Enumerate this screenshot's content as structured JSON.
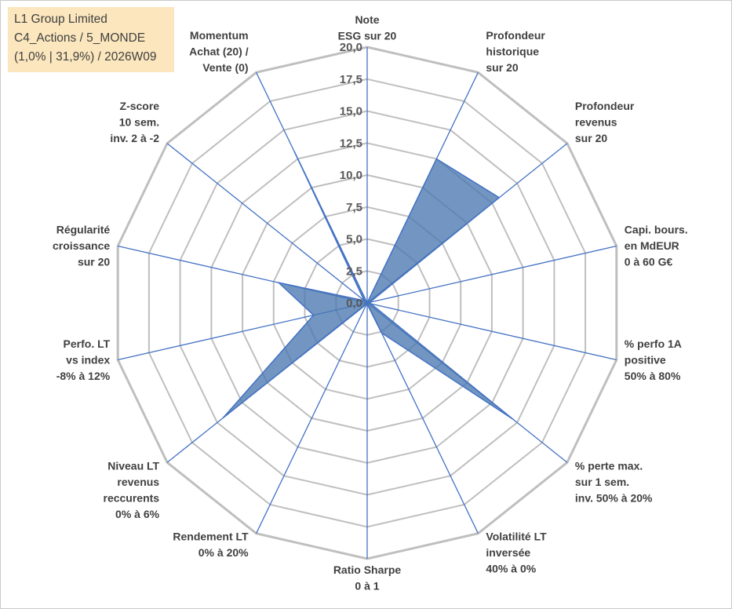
{
  "header": {
    "line1": "L1 Group Limited",
    "line2": "C4_Actions / 5_MONDE",
    "line3": "(1,0% | 31,9%) / 2026W09"
  },
  "colors": {
    "grid": "#bfbfbf",
    "spoke": "#4472c4",
    "fill": "#4a78b0",
    "stroke": "#4472c4",
    "label": "#404040",
    "tick": "#595959",
    "header_bg": "#fbe6bd"
  },
  "chart_data": {
    "type": "radar",
    "rmin": 0,
    "rmax": 20,
    "step": 2.5,
    "tick_labels": [
      "0,0",
      "2,5",
      "5,0",
      "7,5",
      "10,0",
      "12,5",
      "15,0",
      "17,5",
      "20,0"
    ],
    "grid": true,
    "axes": [
      {
        "label": [
          "Note",
          "ESG sur 20"
        ],
        "value": 0
      },
      {
        "label": [
          "Profondeur",
          "historique",
          "sur 20"
        ],
        "value": 12.5
      },
      {
        "label": [
          "Profondeur",
          "revenus",
          "sur 20"
        ],
        "value": 13.2
      },
      {
        "label": [
          "Capi. bours.",
          "en MdEUR",
          "0 à 60 G€"
        ],
        "value": 0.2
      },
      {
        "label": [
          "% perfo 1A",
          "positive",
          "50% à 80%"
        ],
        "value": 0.3
      },
      {
        "label": [
          "% perte max.",
          "sur 1 sem.",
          "inv. 50% à 20%"
        ],
        "value": 14.6
      },
      {
        "label": [
          "Volatilité LT",
          "inversée",
          "40% à 0%"
        ],
        "value": 2.6
      },
      {
        "label": [
          "Ratio Sharpe",
          "0 à 1"
        ],
        "value": 0.1
      },
      {
        "label": [
          "Rendement LT",
          "0% à 20%"
        ],
        "value": 0.1
      },
      {
        "label": [
          "Niveau LT",
          "revenus",
          "reccurents",
          "0% à 6%"
        ],
        "value": 14.4
      },
      {
        "label": [
          "Perfo. LT",
          "vs index",
          "-8% à 12%"
        ],
        "value": 4.3
      },
      {
        "label": [
          "Régularité",
          "croissance",
          "sur 20"
        ],
        "value": 7.1
      },
      {
        "label": [
          "Z-score",
          "10 sem.",
          "inv. 2 à -2"
        ],
        "value": 0.3
      },
      {
        "label": [
          "Momentum",
          "Achat (20) /",
          "Vente (0)"
        ],
        "value": 13.1
      }
    ]
  }
}
